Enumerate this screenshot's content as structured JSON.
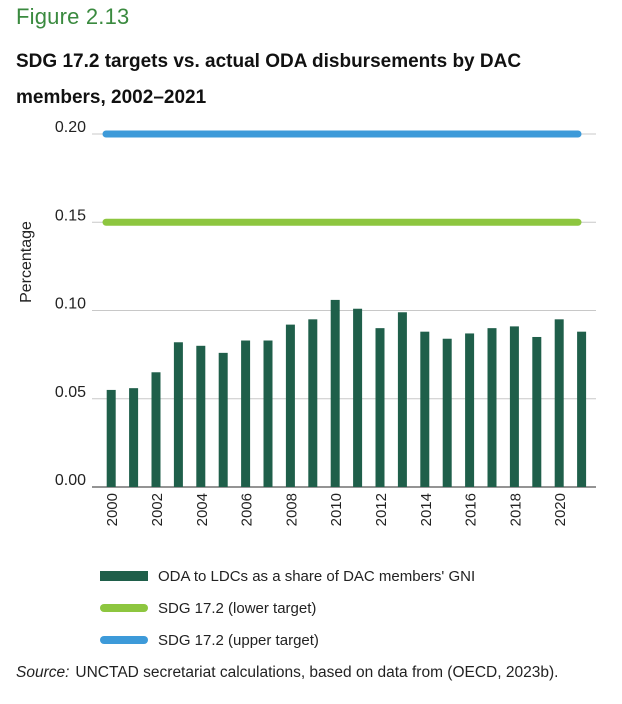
{
  "figure": {
    "label": "Figure 2.13",
    "title": "SDG 17.2 targets vs. actual ODA disbursements by DAC members, 2002–2021"
  },
  "chart_data": {
    "type": "bar",
    "ylabel": "Percentage",
    "xlabel": "",
    "ylim": [
      0,
      0.2
    ],
    "y_ticks": [
      "0.00",
      "0.05",
      "0.10",
      "0.15",
      "0.20"
    ],
    "x_tick_labels": [
      "2000",
      "2002",
      "2004",
      "2006",
      "2008",
      "2010",
      "2012",
      "2014",
      "2016",
      "2018",
      "2020"
    ],
    "grid": "horizontal",
    "legend_position": "bottom",
    "categories": [
      "2000",
      "2001",
      "2002",
      "2003",
      "2004",
      "2005",
      "2006",
      "2007",
      "2008",
      "2009",
      "2010",
      "2011",
      "2012",
      "2013",
      "2014",
      "2015",
      "2016",
      "2017",
      "2018",
      "2019",
      "2020",
      "2021"
    ],
    "series": [
      {
        "name": "ODA to LDCs as a share of DAC members' GNI",
        "kind": "bar",
        "color": "#1f5f4a",
        "values": [
          0.055,
          0.056,
          0.065,
          0.082,
          0.08,
          0.076,
          0.083,
          0.083,
          0.092,
          0.095,
          0.106,
          0.101,
          0.09,
          0.099,
          0.088,
          0.084,
          0.087,
          0.09,
          0.091,
          0.085,
          0.095,
          0.088
        ]
      },
      {
        "name": "SDG 17.2 (lower target)",
        "kind": "line",
        "color": "#8dc63f",
        "value": 0.15
      },
      {
        "name": "SDG 17.2 (upper target)",
        "kind": "line",
        "color": "#3d9ad9",
        "value": 0.2
      }
    ]
  },
  "source": {
    "label": "Source:",
    "text": "UNCTAD secretariat calculations, based on data from (OECD, 2023b)."
  }
}
